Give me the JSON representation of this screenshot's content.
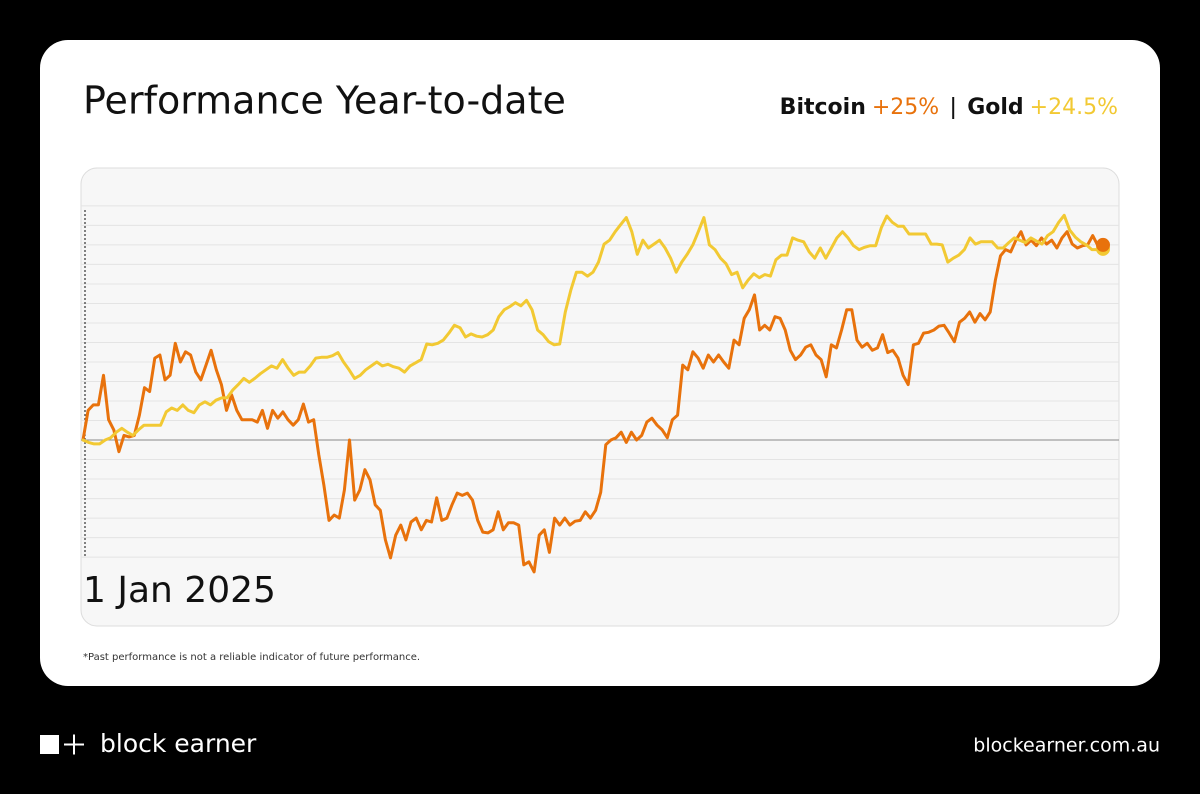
{
  "chart_data": {
    "type": "line",
    "title": "Performance Year-to-date",
    "start_label": "1 Jan 2025",
    "footnote": "*Past performance is not a reliable indicator of future performance.",
    "ylim": [
      -23.7,
      34.6
    ],
    "yticks": [
      -15,
      -12.5,
      -10,
      -7.5,
      -5,
      -2.5,
      0,
      2.5,
      5,
      7.5,
      10,
      12.5,
      15,
      17.5,
      20,
      22.5,
      25,
      27.5,
      30
    ],
    "grid": true,
    "series": [
      {
        "name": "Bitcoin",
        "color": "#e8720c",
        "change_label": "+25%",
        "values": [
          0,
          3.8,
          4.5,
          4.5,
          8.3,
          2.6,
          1.3,
          -1.5,
          0.6,
          0.4,
          0.6,
          3.2,
          6.7,
          6.2,
          10.5,
          10.9,
          7.7,
          8.3,
          12.4,
          10,
          11.3,
          10.9,
          8.7,
          7.7,
          9.6,
          11.5,
          9,
          7.1,
          3.8,
          5.8,
          3.8,
          2.6,
          2.6,
          2.6,
          2.3,
          3.8,
          1.5,
          3.8,
          2.8,
          3.6,
          2.6,
          1.9,
          2.6,
          4.6,
          2.3,
          2.6,
          -1.9,
          -5.8,
          -10.3,
          -9.6,
          -10,
          -6.4,
          0,
          -7.7,
          -6.4,
          -3.8,
          -5.1,
          -8.3,
          -9,
          -12.8,
          -15.1,
          -12.2,
          -10.9,
          -12.8,
          -10.5,
          -10,
          -11.5,
          -10.3,
          -10.5,
          -7.4,
          -10.3,
          -10,
          -8.3,
          -6.8,
          -7.1,
          -6.8,
          -7.7,
          -10.3,
          -11.8,
          -11.9,
          -11.5,
          -9.2,
          -11.5,
          -10.6,
          -10.6,
          -10.9,
          -16,
          -15.6,
          -16.9,
          -12.2,
          -11.5,
          -14.4,
          -10,
          -10.9,
          -10,
          -10.9,
          -10.4,
          -10.3,
          -9.2,
          -10,
          -9,
          -6.7,
          -0.6,
          0,
          0.3,
          1,
          -0.3,
          1,
          0,
          0.6,
          2.3,
          2.8,
          1.9,
          1.3,
          0.3,
          2.6,
          3.2,
          9.6,
          9,
          11.3,
          10.5,
          9.2,
          10.9,
          10,
          10.9,
          10,
          9.2,
          12.8,
          12.2,
          15.6,
          16.7,
          18.6,
          14.1,
          14.7,
          14.1,
          15.8,
          15.6,
          14.1,
          11.5,
          10.3,
          10.9,
          11.9,
          12.2,
          10.9,
          10.3,
          8.1,
          12.2,
          11.8,
          14.1,
          16.7,
          16.7,
          12.8,
          11.9,
          12.4,
          11.5,
          11.8,
          13.5,
          11.2,
          11.5,
          10.5,
          8.3,
          7.1,
          12.2,
          12.4,
          13.7,
          13.8,
          14.1,
          14.6,
          14.7,
          13.7,
          12.6,
          15.1,
          15.6,
          16.4,
          15.1,
          16.2,
          15.4,
          16.4,
          20.5,
          23.6,
          24.4,
          24.1,
          25.6,
          26.7,
          25,
          25.6,
          24.9,
          25.9,
          25.1,
          25.6,
          24.6,
          25.9,
          26.7,
          25.1,
          24.6,
          24.9,
          25,
          26.2,
          24.9,
          25
        ]
      },
      {
        "name": "Gold",
        "color": "#f2c933",
        "change_label": "+24.5%",
        "values": [
          0,
          -0.3,
          -0.5,
          -0.5,
          0,
          0.3,
          1,
          1.5,
          1,
          0.6,
          1.3,
          1.9,
          1.9,
          1.9,
          1.9,
          3.6,
          4.1,
          3.8,
          4.5,
          3.8,
          3.5,
          4.5,
          4.9,
          4.5,
          5.1,
          5.4,
          5.4,
          6.4,
          7.1,
          7.9,
          7.4,
          7.9,
          8.5,
          9,
          9.5,
          9.2,
          10.3,
          9.2,
          8.3,
          8.7,
          8.7,
          9.5,
          10.5,
          10.6,
          10.6,
          10.8,
          11.2,
          10,
          9,
          7.9,
          8.3,
          9,
          9.5,
          10,
          9.5,
          9.7,
          9.4,
          9.2,
          8.7,
          9.5,
          9.9,
          10.3,
          12.3,
          12.2,
          12.4,
          12.8,
          13.7,
          14.7,
          14.4,
          13.2,
          13.6,
          13.3,
          13.2,
          13.5,
          14.1,
          15.8,
          16.7,
          17.1,
          17.6,
          17.2,
          17.9,
          16.7,
          14.1,
          13.5,
          12.6,
          12.2,
          12.3,
          16.4,
          19.2,
          21.5,
          21.5,
          21,
          21.5,
          22.8,
          25.1,
          25.6,
          26.7,
          27.6,
          28.5,
          26.7,
          23.8,
          25.6,
          24.6,
          25.1,
          25.6,
          24.6,
          23.3,
          21.5,
          22.8,
          23.8,
          25,
          26.7,
          28.5,
          25,
          24.4,
          23.3,
          22.6,
          21.2,
          21.5,
          19.5,
          20.5,
          21.3,
          20.8,
          21.2,
          21,
          23.1,
          23.7,
          23.7,
          25.9,
          25.6,
          25.4,
          24.1,
          23.3,
          24.6,
          23.3,
          24.6,
          25.9,
          26.7,
          25.9,
          24.9,
          24.4,
          24.7,
          24.9,
          24.9,
          27.2,
          28.7,
          27.9,
          27.4,
          27.4,
          26.4,
          26.4,
          26.4,
          26.4,
          25.1,
          25.1,
          25,
          22.8,
          23.3,
          23.7,
          24.4,
          25.9,
          25.1,
          25.4,
          25.4,
          25.4,
          24.6,
          24.6,
          25.3,
          25.9,
          25.6,
          25.3,
          25.9,
          25.5,
          25.1,
          26.2,
          26.7,
          27.9,
          28.8,
          26.9,
          26,
          25.4,
          25,
          24.4,
          24.4,
          24.5
        ]
      }
    ]
  },
  "brand": {
    "name": "block earner",
    "url": "blockearner.com.au"
  }
}
